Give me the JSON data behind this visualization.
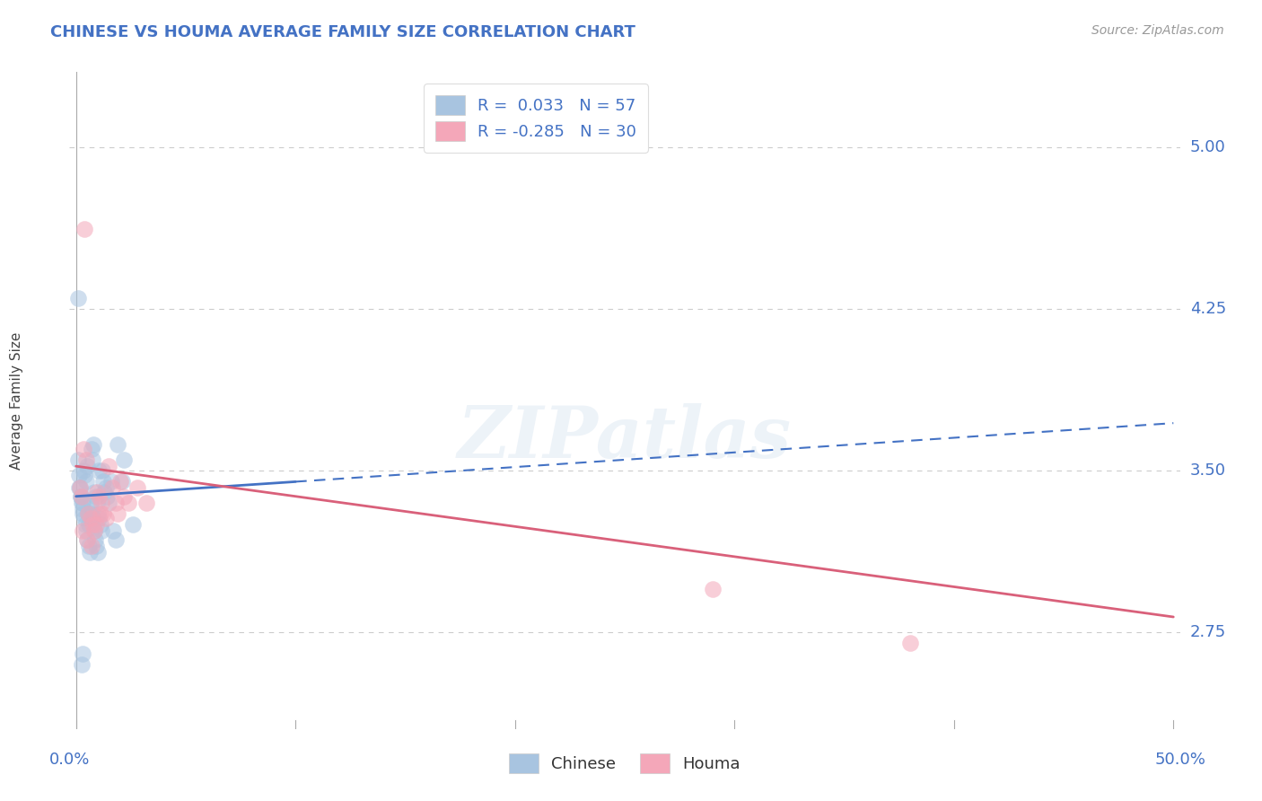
{
  "title": "CHINESE VS HOUMA AVERAGE FAMILY SIZE CORRELATION CHART",
  "source": "Source: ZipAtlas.com",
  "ylabel": "Average Family Size",
  "y_ticks": [
    2.75,
    3.5,
    4.25,
    5.0
  ],
  "x_range": [
    0.0,
    50.0
  ],
  "y_range": [
    2.3,
    5.35
  ],
  "chinese_R": 0.033,
  "chinese_N": 57,
  "houma_R": -0.285,
  "houma_N": 30,
  "chinese_color": "#a8c4e0",
  "chinese_line_color": "#4472c4",
  "houma_color": "#f4a7b9",
  "houma_line_color": "#d9607a",
  "background_color": "#ffffff",
  "grid_color": "#cccccc",
  "title_color": "#4472c4",
  "source_color": "#999999",
  "axis_label_color": "#4472c4",
  "tick_label_color": "#555555",
  "chinese_x": [
    0.15,
    0.2,
    0.25,
    0.3,
    0.35,
    0.4,
    0.45,
    0.5,
    0.55,
    0.6,
    0.65,
    0.7,
    0.75,
    0.8,
    0.85,
    0.9,
    0.95,
    1.0,
    1.05,
    1.1,
    1.15,
    1.2,
    1.25,
    1.3,
    1.35,
    1.4,
    1.5,
    1.6,
    1.7,
    1.8,
    0.1,
    0.12,
    0.18,
    0.22,
    0.28,
    0.32,
    0.38,
    0.42,
    0.48,
    0.52,
    0.58,
    0.62,
    0.68,
    0.72,
    0.78,
    0.82,
    0.88,
    0.92,
    0.98,
    1.02,
    0.08,
    2.2,
    2.6,
    1.9,
    2.1,
    0.3,
    0.25
  ],
  "chinese_y": [
    3.42,
    3.38,
    3.35,
    3.32,
    3.5,
    3.48,
    3.45,
    3.52,
    3.3,
    3.25,
    3.28,
    3.6,
    3.55,
    3.62,
    3.4,
    3.38,
    3.35,
    3.3,
    3.28,
    3.25,
    3.22,
    3.5,
    3.45,
    3.4,
    3.42,
    3.38,
    3.35,
    3.45,
    3.22,
    3.18,
    3.55,
    3.48,
    3.42,
    3.38,
    3.35,
    3.3,
    3.28,
    3.25,
    3.22,
    3.18,
    3.15,
    3.12,
    3.35,
    3.3,
    3.28,
    3.22,
    3.18,
    3.15,
    3.12,
    3.5,
    4.3,
    3.55,
    3.25,
    3.62,
    3.45,
    2.65,
    2.6
  ],
  "houma_x": [
    0.18,
    0.25,
    0.35,
    0.45,
    0.55,
    0.65,
    0.75,
    0.85,
    0.95,
    1.05,
    1.15,
    1.25,
    1.35,
    1.5,
    1.65,
    1.8,
    1.9,
    2.0,
    2.2,
    2.4,
    0.3,
    0.5,
    0.7,
    0.9,
    1.1,
    2.8,
    3.2,
    29.0,
    38.0,
    0.4
  ],
  "houma_y": [
    3.42,
    3.38,
    3.6,
    3.55,
    3.3,
    3.28,
    3.25,
    3.22,
    3.4,
    3.38,
    3.35,
    3.3,
    3.28,
    3.52,
    3.42,
    3.35,
    3.3,
    3.45,
    3.38,
    3.35,
    3.22,
    3.18,
    3.15,
    3.25,
    3.3,
    3.42,
    3.35,
    2.95,
    2.7,
    4.62
  ],
  "chinese_trend_x0": 0.0,
  "chinese_trend_y0": 3.38,
  "chinese_trend_x1": 50.0,
  "chinese_trend_y1": 3.72,
  "houma_trend_x0": 0.0,
  "houma_trend_y0": 3.52,
  "houma_trend_x1": 50.0,
  "houma_trend_y1": 2.82,
  "chinese_solid_end": 10.0,
  "watermark": "ZIPatlas"
}
